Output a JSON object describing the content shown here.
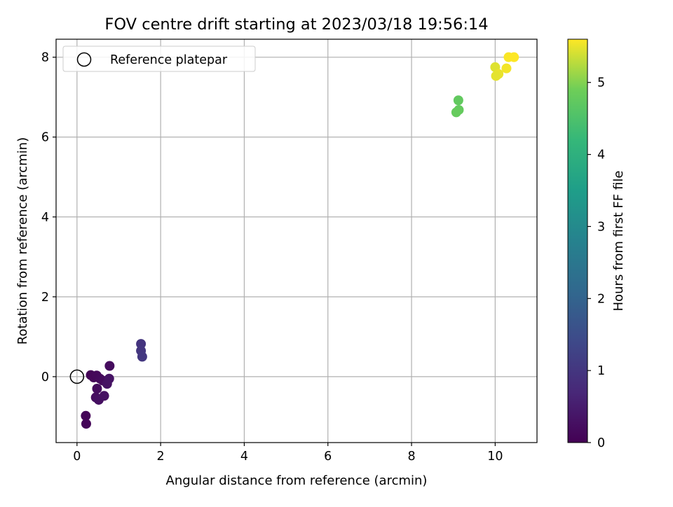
{
  "chart_data": {
    "type": "scatter",
    "title": "FOV centre drift starting at 2023/03/18 19:56:14",
    "xlabel": "Angular distance from reference (arcmin)",
    "ylabel": "Rotation from reference (arcmin)",
    "xlim": [
      -0.5,
      11.0
    ],
    "ylim": [
      -1.65,
      8.45
    ],
    "xticks": [
      0,
      2,
      4,
      6,
      8,
      10
    ],
    "yticks": [
      0,
      2,
      4,
      6,
      8
    ],
    "grid": true,
    "legend": {
      "position": "top-left",
      "entries": [
        "Reference platepar"
      ]
    },
    "reference_point": {
      "x": 0,
      "y": 0
    },
    "colorbar": {
      "label": "Hours from first FF file",
      "min": 0,
      "max": 5.6,
      "ticks": [
        0,
        1,
        2,
        3,
        4,
        5
      ],
      "colormap": "viridis"
    },
    "points": [
      {
        "x": 0.33,
        "y": 0.04,
        "hours": 0.05
      },
      {
        "x": 0.4,
        "y": -0.02,
        "hours": 0.1
      },
      {
        "x": 0.47,
        "y": 0.03,
        "hours": 0.12
      },
      {
        "x": 0.55,
        "y": -0.05,
        "hours": 0.15
      },
      {
        "x": 0.62,
        "y": -0.1,
        "hours": 0.18
      },
      {
        "x": 0.48,
        "y": -0.3,
        "hours": 0.2
      },
      {
        "x": 0.45,
        "y": -0.52,
        "hours": 0.22
      },
      {
        "x": 0.52,
        "y": -0.58,
        "hours": 0.25
      },
      {
        "x": 0.65,
        "y": -0.48,
        "hours": 0.28
      },
      {
        "x": 0.72,
        "y": -0.18,
        "hours": 0.3
      },
      {
        "x": 0.77,
        "y": -0.05,
        "hours": 0.32
      },
      {
        "x": 0.78,
        "y": 0.27,
        "hours": 0.2
      },
      {
        "x": 0.21,
        "y": -0.98,
        "hours": 0.06
      },
      {
        "x": 0.22,
        "y": -1.18,
        "hours": 0.08
      },
      {
        "x": 1.53,
        "y": 0.82,
        "hours": 0.95
      },
      {
        "x": 1.53,
        "y": 0.65,
        "hours": 1.0
      },
      {
        "x": 1.56,
        "y": 0.5,
        "hours": 1.02
      },
      {
        "x": 9.12,
        "y": 6.92,
        "hours": 4.75
      },
      {
        "x": 9.13,
        "y": 6.68,
        "hours": 4.78
      },
      {
        "x": 9.07,
        "y": 6.62,
        "hours": 4.8
      },
      {
        "x": 10.0,
        "y": 7.75,
        "hours": 5.45
      },
      {
        "x": 10.08,
        "y": 7.58,
        "hours": 5.5
      },
      {
        "x": 10.02,
        "y": 7.53,
        "hours": 5.48
      },
      {
        "x": 10.27,
        "y": 7.72,
        "hours": 5.55
      },
      {
        "x": 10.32,
        "y": 8.0,
        "hours": 5.58
      },
      {
        "x": 10.45,
        "y": 8.0,
        "hours": 5.6
      }
    ]
  }
}
